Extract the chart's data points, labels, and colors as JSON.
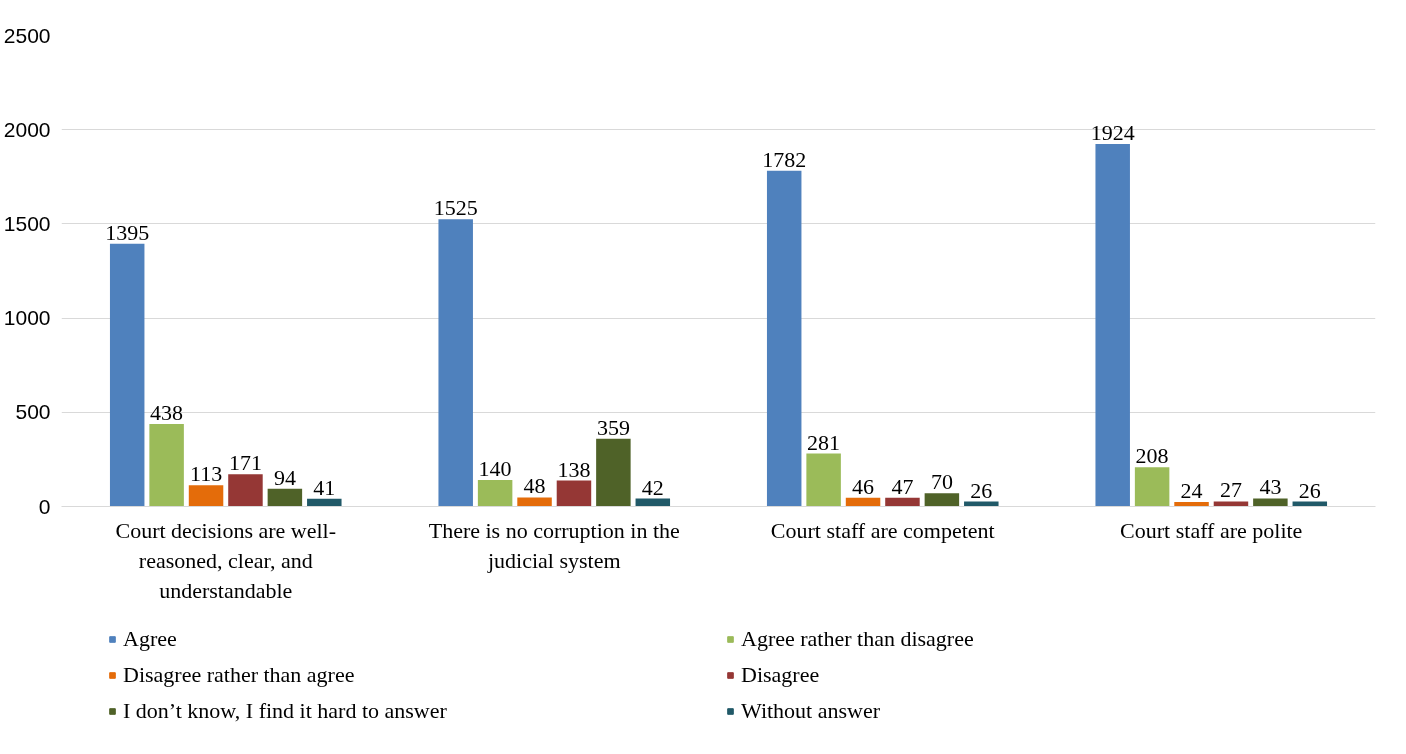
{
  "chart_data": {
    "type": "bar",
    "categories": [
      "Court decisions are well-reasoned, clear, and understandable",
      "There is no corruption in the judicial system",
      "Court staff are competent",
      "Court staff are polite"
    ],
    "series": [
      {
        "name": "Agree",
        "color": "#4f81bd",
        "values": [
          1395,
          1525,
          1782,
          1924
        ]
      },
      {
        "name": "Agree rather than disagree",
        "color": "#9bbb59",
        "values": [
          438,
          140,
          281,
          208
        ]
      },
      {
        "name": "Disagree rather than agree",
        "color": "#e46c0a",
        "values": [
          113,
          48,
          46,
          24
        ]
      },
      {
        "name": "Disagree",
        "color": "#953735",
        "values": [
          171,
          138,
          47,
          27
        ]
      },
      {
        "name": "I don’t know, I find it hard to answer",
        "color": "#4f6228",
        "values": [
          94,
          359,
          70,
          43
        ]
      },
      {
        "name": "Without answer",
        "color": "#215968",
        "values": [
          41,
          42,
          26,
          26
        ]
      }
    ],
    "ylim": [
      0,
      2500
    ],
    "yticks": [
      0,
      500,
      1000,
      1500,
      2000,
      2500
    ],
    "grid": "y",
    "legend": "bottom",
    "data_labels": true
  }
}
